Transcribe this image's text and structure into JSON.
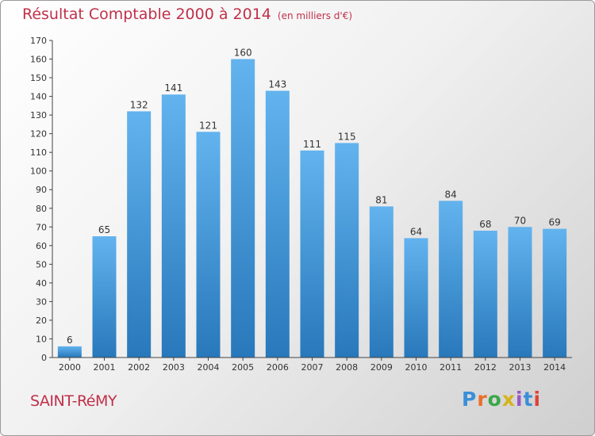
{
  "header": {
    "title": "Résultat Comptable 2000 à 2014",
    "unit": "(en milliers d'€)"
  },
  "footer": {
    "commune": "SAINT-RéMY",
    "logo": "Proxiti"
  },
  "colors": {
    "title": "#c0304a",
    "bar_top": "#62b3ee",
    "bar_bottom": "#2878bb",
    "axis": "#444444"
  },
  "chart_data": {
    "type": "bar",
    "title": "Résultat Comptable 2000 à 2014",
    "subtitle": "(en milliers d'€)",
    "xlabel": "",
    "ylabel": "",
    "categories": [
      "2000",
      "2001",
      "2002",
      "2003",
      "2004",
      "2005",
      "2006",
      "2007",
      "2008",
      "2009",
      "2010",
      "2011",
      "2012",
      "2013",
      "2014"
    ],
    "values": [
      6,
      65,
      132,
      141,
      121,
      160,
      143,
      111,
      115,
      81,
      64,
      84,
      68,
      70,
      69
    ],
    "ylim": [
      0,
      170
    ],
    "yticks": [
      0,
      10,
      20,
      30,
      40,
      50,
      60,
      70,
      80,
      90,
      100,
      110,
      120,
      130,
      140,
      150,
      160,
      170
    ],
    "data_labels": true,
    "grid": false,
    "legend": "none"
  }
}
